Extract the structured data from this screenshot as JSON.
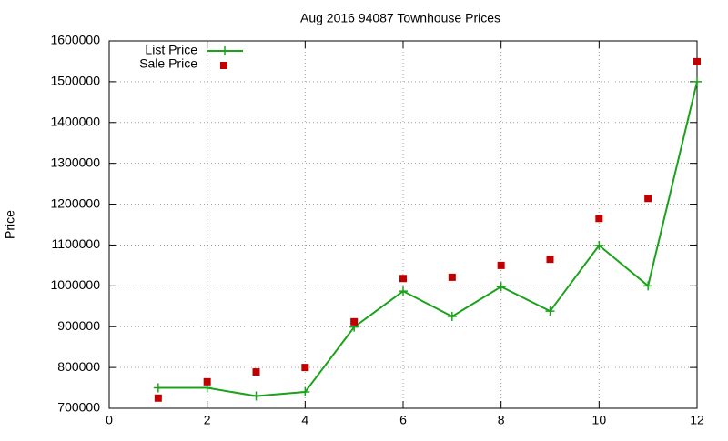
{
  "chart_data": {
    "type": "line",
    "title": "Aug 2016 94087 Townhouse Prices",
    "y_label": "Price",
    "x": [
      1,
      2,
      3,
      4,
      5,
      6,
      7,
      8,
      9,
      10,
      11,
      12
    ],
    "series": [
      {
        "name": "List Price",
        "type": "line",
        "color": "#1aa31a",
        "values": [
          750000,
          750000,
          730000,
          740000,
          899000,
          987000,
          925000,
          998000,
          938000,
          1099000,
          1000000,
          1500000
        ]
      },
      {
        "name": "Sale Price",
        "type": "scatter",
        "color": "#c00000",
        "values": [
          725000,
          765000,
          789000,
          800000,
          912000,
          1018000,
          1021000,
          1050000,
          1065000,
          1165000,
          1214000,
          1549000
        ]
      }
    ],
    "xlim": [
      0,
      12
    ],
    "xticks": [
      0,
      2,
      4,
      6,
      8,
      10,
      12
    ],
    "ylim": [
      700000,
      1600000
    ],
    "yticks": [
      700000,
      800000,
      900000,
      1000000,
      1100000,
      1200000,
      1300000,
      1400000,
      1500000,
      1600000
    ],
    "grid": true,
    "legend": "top-left"
  }
}
